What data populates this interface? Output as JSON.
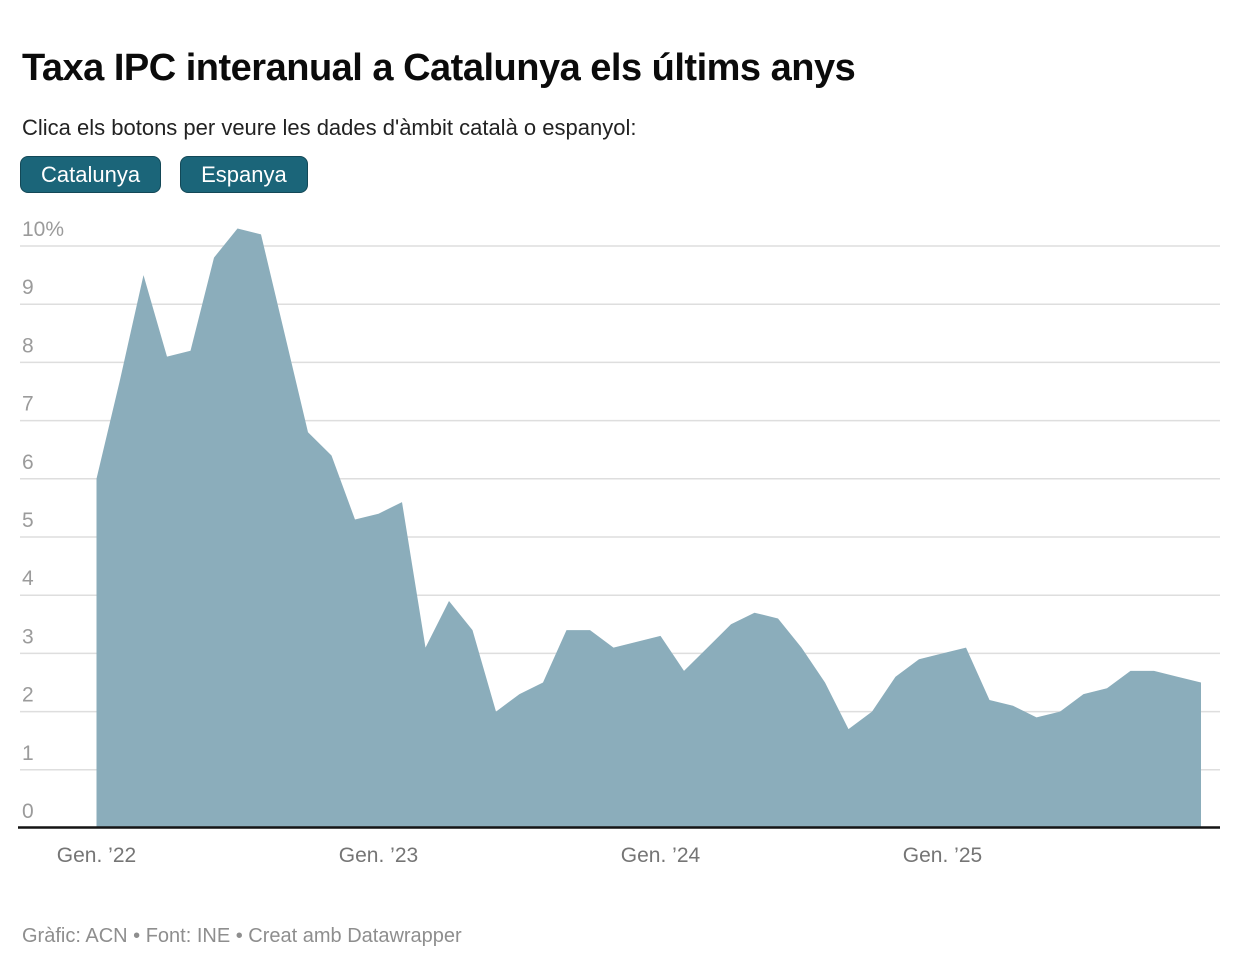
{
  "header": {
    "title": "Taxa IPC interanual a Catalunya els últims anys",
    "subtitle": "Clica els botons per veure les dades d'àmbit català o espanyol:"
  },
  "buttons": [
    {
      "label": "Catalunya",
      "active": true
    },
    {
      "label": "Espanya",
      "active": false
    }
  ],
  "footer": {
    "text": "Gràfic: ACN • Font: INE • Creat amb Datawrapper"
  },
  "colors": {
    "area_fill": "#8badbb",
    "button_bg": "#1b6579",
    "button_text": "#ffffff",
    "gridline": "#dedede",
    "axis_line": "#141414",
    "y_tick_text": "#9b9b9b",
    "x_tick_text": "#757575",
    "title_text": "#0b0b0b",
    "footer_text": "#8e8e8e"
  },
  "chart_data": {
    "type": "area",
    "title": "Taxa IPC interanual a Catalunya els últims anys",
    "series_name": "Catalunya",
    "unit": "%",
    "interpolation": "linear",
    "grid": "horizontal",
    "legend_position": "none",
    "ylim": [
      0,
      10
    ],
    "x_start": "2022-01",
    "x_end": "2025-12",
    "x_frequency": "monthly",
    "x": [
      "2022-01",
      "2022-02",
      "2022-03",
      "2022-04",
      "2022-05",
      "2022-06",
      "2022-07",
      "2022-08",
      "2022-09",
      "2022-10",
      "2022-11",
      "2022-12",
      "2023-01",
      "2023-02",
      "2023-03",
      "2023-04",
      "2023-05",
      "2023-06",
      "2023-07",
      "2023-08",
      "2023-09",
      "2023-10",
      "2023-11",
      "2023-12",
      "2024-01",
      "2024-02",
      "2024-03",
      "2024-04",
      "2024-05",
      "2024-06",
      "2024-07",
      "2024-08",
      "2024-09",
      "2024-10",
      "2024-11",
      "2024-12",
      "2025-01",
      "2025-02",
      "2025-03",
      "2025-04",
      "2025-05",
      "2025-06",
      "2025-07",
      "2025-08",
      "2025-09",
      "2025-10",
      "2025-11",
      "2025-12"
    ],
    "values": [
      6.0,
      7.7,
      9.5,
      8.1,
      8.2,
      9.8,
      10.3,
      10.2,
      8.5,
      6.8,
      6.4,
      5.3,
      5.4,
      5.6,
      3.1,
      3.9,
      3.4,
      2.0,
      2.3,
      2.5,
      3.4,
      3.4,
      3.1,
      3.2,
      3.3,
      2.7,
      3.1,
      3.5,
      3.7,
      3.6,
      3.1,
      2.5,
      1.7,
      2.0,
      2.6,
      2.9,
      3.0,
      3.1,
      2.2,
      2.1,
      1.9,
      2.0,
      2.3,
      2.4,
      2.7,
      2.7,
      2.6,
      2.5
    ],
    "yticks": [
      {
        "value": 10,
        "label": "10%"
      },
      {
        "value": 9,
        "label": "9"
      },
      {
        "value": 8,
        "label": "8"
      },
      {
        "value": 7,
        "label": "7"
      },
      {
        "value": 6,
        "label": "6"
      },
      {
        "value": 5,
        "label": "5"
      },
      {
        "value": 4,
        "label": "4"
      },
      {
        "value": 3,
        "label": "3"
      },
      {
        "value": 2,
        "label": "2"
      },
      {
        "value": 1,
        "label": "1"
      },
      {
        "value": 0,
        "label": "0"
      }
    ],
    "xticks": [
      {
        "index": 0,
        "label": "Gen. ’22"
      },
      {
        "index": 12,
        "label": "Gen. ’23"
      },
      {
        "index": 24,
        "label": "Gen. ’24"
      },
      {
        "index": 36,
        "label": "Gen. ’25"
      }
    ]
  }
}
